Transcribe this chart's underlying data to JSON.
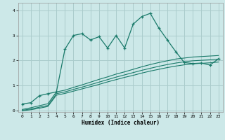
{
  "title": "",
  "xlabel": "Humidex (Indice chaleur)",
  "bg_color": "#cce8e8",
  "grid_color": "#aacccc",
  "line_color": "#1a7a6a",
  "xlim": [
    -0.5,
    23.5
  ],
  "ylim": [
    -0.05,
    4.3
  ],
  "xticks": [
    0,
    1,
    2,
    3,
    4,
    5,
    6,
    7,
    8,
    9,
    10,
    11,
    12,
    13,
    14,
    15,
    16,
    17,
    18,
    19,
    20,
    21,
    22,
    23
  ],
  "yticks": [
    0,
    1,
    2,
    3,
    4
  ],
  "curve1_x": [
    0,
    1,
    2,
    3,
    4,
    5,
    6,
    7,
    8,
    9,
    10,
    11,
    12,
    13,
    14,
    15,
    16,
    17,
    18,
    19,
    20,
    21,
    22,
    23
  ],
  "curve1_y": [
    0.27,
    0.32,
    0.6,
    0.68,
    0.75,
    2.45,
    3.0,
    3.07,
    2.82,
    2.95,
    2.5,
    3.0,
    2.5,
    3.45,
    3.75,
    3.88,
    3.3,
    2.82,
    2.35,
    1.92,
    1.88,
    1.9,
    1.82,
    2.07
  ],
  "curve2_x": [
    0,
    1,
    2,
    3,
    4,
    5,
    6,
    7,
    8,
    9,
    10,
    11,
    12,
    13,
    14,
    15,
    16,
    17,
    18,
    19,
    20,
    21,
    22,
    23
  ],
  "curve2_y": [
    0.05,
    0.12,
    0.2,
    0.28,
    0.75,
    0.82,
    0.93,
    1.03,
    1.14,
    1.25,
    1.35,
    1.46,
    1.55,
    1.65,
    1.75,
    1.84,
    1.92,
    1.99,
    2.06,
    2.1,
    2.14,
    2.16,
    2.18,
    2.2
  ],
  "curve3_x": [
    0,
    1,
    2,
    3,
    4,
    5,
    6,
    7,
    8,
    9,
    10,
    11,
    12,
    13,
    14,
    15,
    16,
    17,
    18,
    19,
    20,
    21,
    22,
    23
  ],
  "curve3_y": [
    0.02,
    0.07,
    0.14,
    0.21,
    0.68,
    0.75,
    0.85,
    0.94,
    1.04,
    1.14,
    1.24,
    1.34,
    1.43,
    1.52,
    1.61,
    1.69,
    1.77,
    1.84,
    1.9,
    1.95,
    1.99,
    2.01,
    2.03,
    2.06
  ],
  "curve4_x": [
    0,
    1,
    2,
    3,
    4,
    5,
    6,
    7,
    8,
    9,
    10,
    11,
    12,
    13,
    14,
    15,
    16,
    17,
    18,
    19,
    20,
    21,
    22,
    23
  ],
  "curve4_y": [
    0.0,
    0.04,
    0.1,
    0.17,
    0.62,
    0.69,
    0.78,
    0.87,
    0.96,
    1.05,
    1.15,
    1.24,
    1.33,
    1.41,
    1.5,
    1.58,
    1.65,
    1.72,
    1.78,
    1.83,
    1.87,
    1.89,
    1.91,
    1.94
  ]
}
